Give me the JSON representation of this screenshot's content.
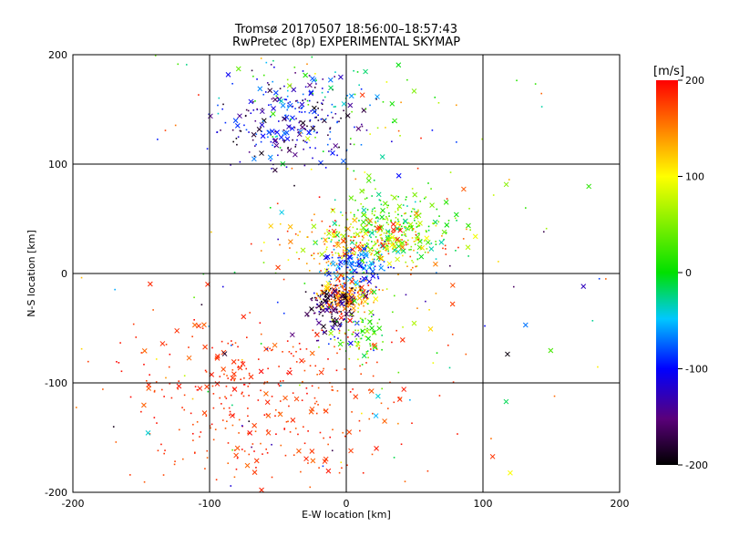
{
  "chart_data": {
    "type": "scatter",
    "title": "Tromsø 20170507 18:56:00–18:57:43",
    "subtitle": "RwPretec (8p) EXPERIMENTAL SKYMAP",
    "xlabel": "E-W location [km]",
    "ylabel": "N-S location [km]",
    "xlim": [
      -200,
      200
    ],
    "ylim": [
      -200,
      200
    ],
    "x_ticks": [
      "-200",
      "-100",
      "0",
      "100",
      "200"
    ],
    "y_ticks": [
      "-200",
      "-100",
      "0",
      "100",
      "200"
    ],
    "grid": true,
    "colorbar": {
      "label": "[m/s]",
      "range": [
        -200,
        200
      ],
      "ticks": [
        "-200",
        "-100",
        "0",
        "100",
        "200"
      ],
      "colormap": "rainbow (black → purple → blue → cyan → green → yellow → red)"
    },
    "markers": [
      "x",
      "dot"
    ],
    "point_clusters": [
      {
        "center": [
          -40,
          140
        ],
        "spread": [
          25,
          22
        ],
        "value_range": [
          -200,
          -60
        ],
        "count": 260
      },
      {
        "center": [
          -20,
          160
        ],
        "spread": [
          40,
          30
        ],
        "value_range": [
          -60,
          60
        ],
        "count": 60
      },
      {
        "center": [
          20,
          140
        ],
        "spread": [
          70,
          50
        ],
        "value_range": [
          -100,
          200
        ],
        "count": 70
      },
      {
        "center": [
          35,
          45
        ],
        "spread": [
          20,
          14
        ],
        "value_range": [
          -40,
          80
        ],
        "count": 280
      },
      {
        "center": [
          10,
          25
        ],
        "spread": [
          28,
          12
        ],
        "value_range": [
          60,
          200
        ],
        "count": 260
      },
      {
        "center": [
          5,
          5
        ],
        "spread": [
          12,
          10
        ],
        "value_range": [
          -120,
          -40
        ],
        "count": 140
      },
      {
        "center": [
          0,
          -20
        ],
        "spread": [
          10,
          8
        ],
        "value_range": [
          100,
          200
        ],
        "count": 180
      },
      {
        "center": [
          -10,
          -25
        ],
        "spread": [
          10,
          6
        ],
        "value_range": [
          -200,
          -150
        ],
        "count": 80
      },
      {
        "center": [
          -10,
          -40
        ],
        "spread": [
          10,
          12
        ],
        "value_range": [
          -200,
          -80
        ],
        "count": 60
      },
      {
        "center": [
          10,
          -50
        ],
        "spread": [
          10,
          15
        ],
        "value_range": [
          -20,
          80
        ],
        "count": 80
      },
      {
        "center": [
          -60,
          -110
        ],
        "spread": [
          55,
          40
        ],
        "value_range": [
          160,
          200
        ],
        "count": 380
      },
      {
        "center": [
          0,
          -60
        ],
        "spread": [
          100,
          90
        ],
        "value_range": [
          -200,
          200
        ],
        "count": 140
      }
    ]
  }
}
